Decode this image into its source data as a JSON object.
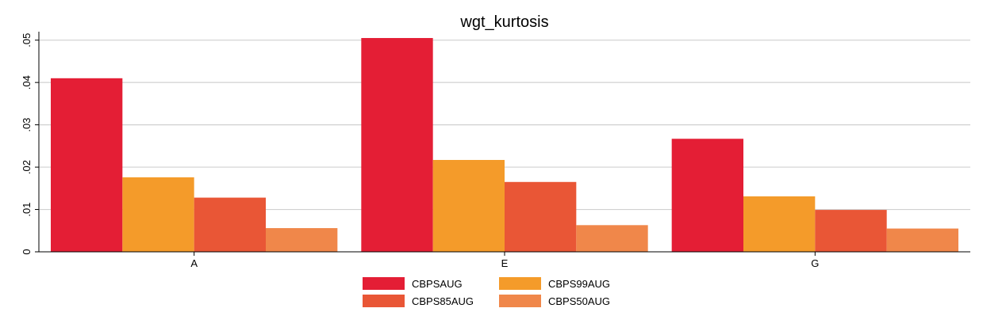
{
  "chart_data": {
    "type": "bar",
    "title": "wgt_kurtosis",
    "xlabel": "",
    "ylabel": "",
    "categories": [
      "A",
      "E",
      "G"
    ],
    "ylim": [
      0,
      0.052
    ],
    "yticks": [
      0,
      0.01,
      0.02,
      0.03,
      0.04,
      0.05
    ],
    "ytick_labels": [
      "0",
      ".01",
      ".02",
      ".03",
      ".04",
      ".05"
    ],
    "grid": true,
    "legend_position": "bottom",
    "series": [
      {
        "name": "CBPSAUG",
        "color": "#e41e35",
        "values": [
          0.041,
          0.0505,
          0.0267
        ]
      },
      {
        "name": "CBPS99AUG",
        "color": "#f49b2a",
        "values": [
          0.0176,
          0.0217,
          0.0131
        ]
      },
      {
        "name": "CBPS85AUG",
        "color": "#e95636",
        "values": [
          0.0128,
          0.0165,
          0.0099
        ]
      },
      {
        "name": "CBPS50AUG",
        "color": "#f0874a",
        "values": [
          0.0056,
          0.0063,
          0.0055
        ]
      }
    ]
  }
}
